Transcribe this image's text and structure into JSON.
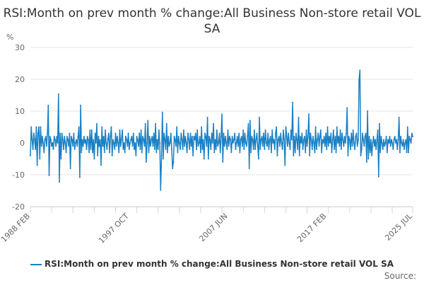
{
  "chart_data": {
    "type": "line",
    "title": "RSI:Month on prev month % change:All Business Non-store retail VOL SA",
    "ylabel": "%",
    "xlabel": "",
    "ylim": [
      -20,
      30
    ],
    "yticks": [
      30,
      20,
      10,
      0,
      -10,
      -20
    ],
    "x_start": "1988 FEB",
    "x_end": "2025 JUL",
    "xtick_labels": [
      {
        "label": "1988 FEB",
        "index": 0
      },
      {
        "label": "1997 OCT",
        "index": 116
      },
      {
        "label": "2007 JUN",
        "index": 232
      },
      {
        "label": "2017 FEB",
        "index": 348
      },
      {
        "label": "2025 JUL",
        "index": 449
      }
    ],
    "grid": true,
    "legend_position": "bottom",
    "color": "#1a80c4",
    "series": [
      {
        "name": "RSI:Month on prev month % change:All Business Non-store retail VOL SA",
        "values": [
          -4,
          5,
          1,
          -2,
          3,
          1,
          -2,
          5,
          -7,
          3,
          5,
          -5,
          5,
          -1,
          2,
          0,
          -3,
          1,
          2,
          -1,
          3,
          11.8,
          -10.2,
          2,
          1,
          -1,
          0,
          -2,
          2,
          1,
          -1,
          2,
          0,
          15.3,
          -12.3,
          3,
          -5,
          3,
          1,
          -2,
          2,
          0,
          -3,
          2,
          1,
          -1,
          3,
          -8,
          2,
          1,
          -1,
          3,
          -2,
          0,
          1,
          -1,
          2,
          5,
          -10.8,
          11.8,
          -3,
          1,
          -1,
          2,
          0,
          1,
          -2,
          2,
          1,
          -3,
          4,
          -2,
          4,
          -3,
          1,
          -5,
          3,
          0,
          6,
          -4,
          2,
          -1,
          1,
          -7,
          5,
          -1,
          2,
          -3,
          4,
          0,
          -2,
          1,
          3,
          -3,
          2,
          5,
          -4,
          1,
          0,
          -2,
          3,
          -1,
          2,
          0,
          -3,
          4,
          -1,
          1,
          4,
          -2,
          0,
          -3,
          2,
          1,
          -1,
          3,
          -2,
          0,
          1,
          2,
          -1,
          3,
          -2,
          0,
          -4,
          2,
          1,
          -1,
          3,
          -2,
          4,
          -3,
          2,
          1,
          -1,
          6,
          -6,
          0,
          7,
          -3,
          2,
          -1,
          1,
          2,
          -1,
          3,
          -2,
          6,
          -3,
          1,
          -2,
          4,
          0,
          -14.8,
          -4,
          9.6,
          -5,
          3,
          1,
          -2,
          6,
          -3,
          2,
          -1,
          0,
          3,
          -2,
          -8,
          -6,
          2,
          1,
          -1,
          5,
          -3,
          2,
          0,
          -2,
          3,
          1,
          -2,
          4,
          -1,
          2,
          0,
          -3,
          3,
          1,
          -2,
          3,
          -1,
          2,
          -4,
          2,
          1,
          3,
          -2,
          4,
          -1,
          0,
          2,
          -3,
          5,
          -2,
          1,
          -5,
          3,
          2,
          -1,
          8,
          -5,
          2,
          1,
          -2,
          3,
          0,
          6,
          -3,
          1,
          -2,
          4,
          -1,
          0,
          3,
          -3,
          2,
          9,
          -6,
          3,
          -1,
          2,
          0,
          -2,
          4,
          -1,
          2,
          1,
          -3,
          2,
          0,
          1,
          3,
          -2,
          0,
          2,
          -1,
          3,
          -3,
          1,
          2,
          -1,
          4,
          -2,
          3,
          0,
          -1,
          2,
          6,
          -8,
          7,
          -3,
          2,
          1,
          -2,
          4,
          -2,
          1,
          3,
          -1,
          -5,
          8,
          -2,
          1,
          2,
          -1,
          3,
          -2,
          4,
          0,
          -1,
          3,
          -2,
          1,
          2,
          -3,
          4,
          0,
          1,
          -2,
          3,
          5,
          -4,
          1,
          2,
          -1,
          3,
          0,
          -2,
          4,
          1,
          -7,
          5,
          2,
          -1,
          3,
          0,
          -2,
          4,
          1,
          12.7,
          -4,
          2,
          -3,
          3,
          1,
          -2,
          8,
          -4,
          2,
          0,
          3,
          -2,
          1,
          2,
          -3,
          4,
          -1,
          2,
          9,
          -4,
          3,
          1,
          -2,
          2,
          0,
          -3,
          5,
          -2,
          1,
          3,
          -1,
          2,
          4,
          -3,
          1,
          0,
          2,
          -1,
          3,
          -2,
          5,
          -1,
          2,
          0,
          3,
          -3,
          1,
          4,
          -2,
          2,
          -3,
          5,
          0,
          2,
          -1,
          4,
          -2,
          3,
          1,
          -1,
          2,
          0,
          3,
          11,
          -4,
          2,
          1,
          -2,
          3,
          -1,
          4,
          0,
          -2,
          2,
          3,
          -1,
          1,
          19.8,
          22.8,
          -4,
          -2,
          3,
          1,
          -1,
          2,
          3,
          -6,
          10,
          -5,
          2,
          -3,
          1,
          -4,
          0,
          2,
          -1,
          1,
          -2,
          1,
          4,
          -10.6,
          6,
          -3,
          2,
          0,
          -2,
          1,
          -1,
          0,
          2,
          -3,
          1,
          0,
          2,
          -1,
          1,
          0,
          -2,
          1,
          2,
          0,
          1,
          -2,
          1,
          8,
          -3,
          2,
          0,
          -1,
          1,
          -2,
          0,
          1,
          -3,
          5,
          -3,
          2,
          1,
          0,
          3,
          2
        ]
      }
    ]
  },
  "source_label": "Source:"
}
